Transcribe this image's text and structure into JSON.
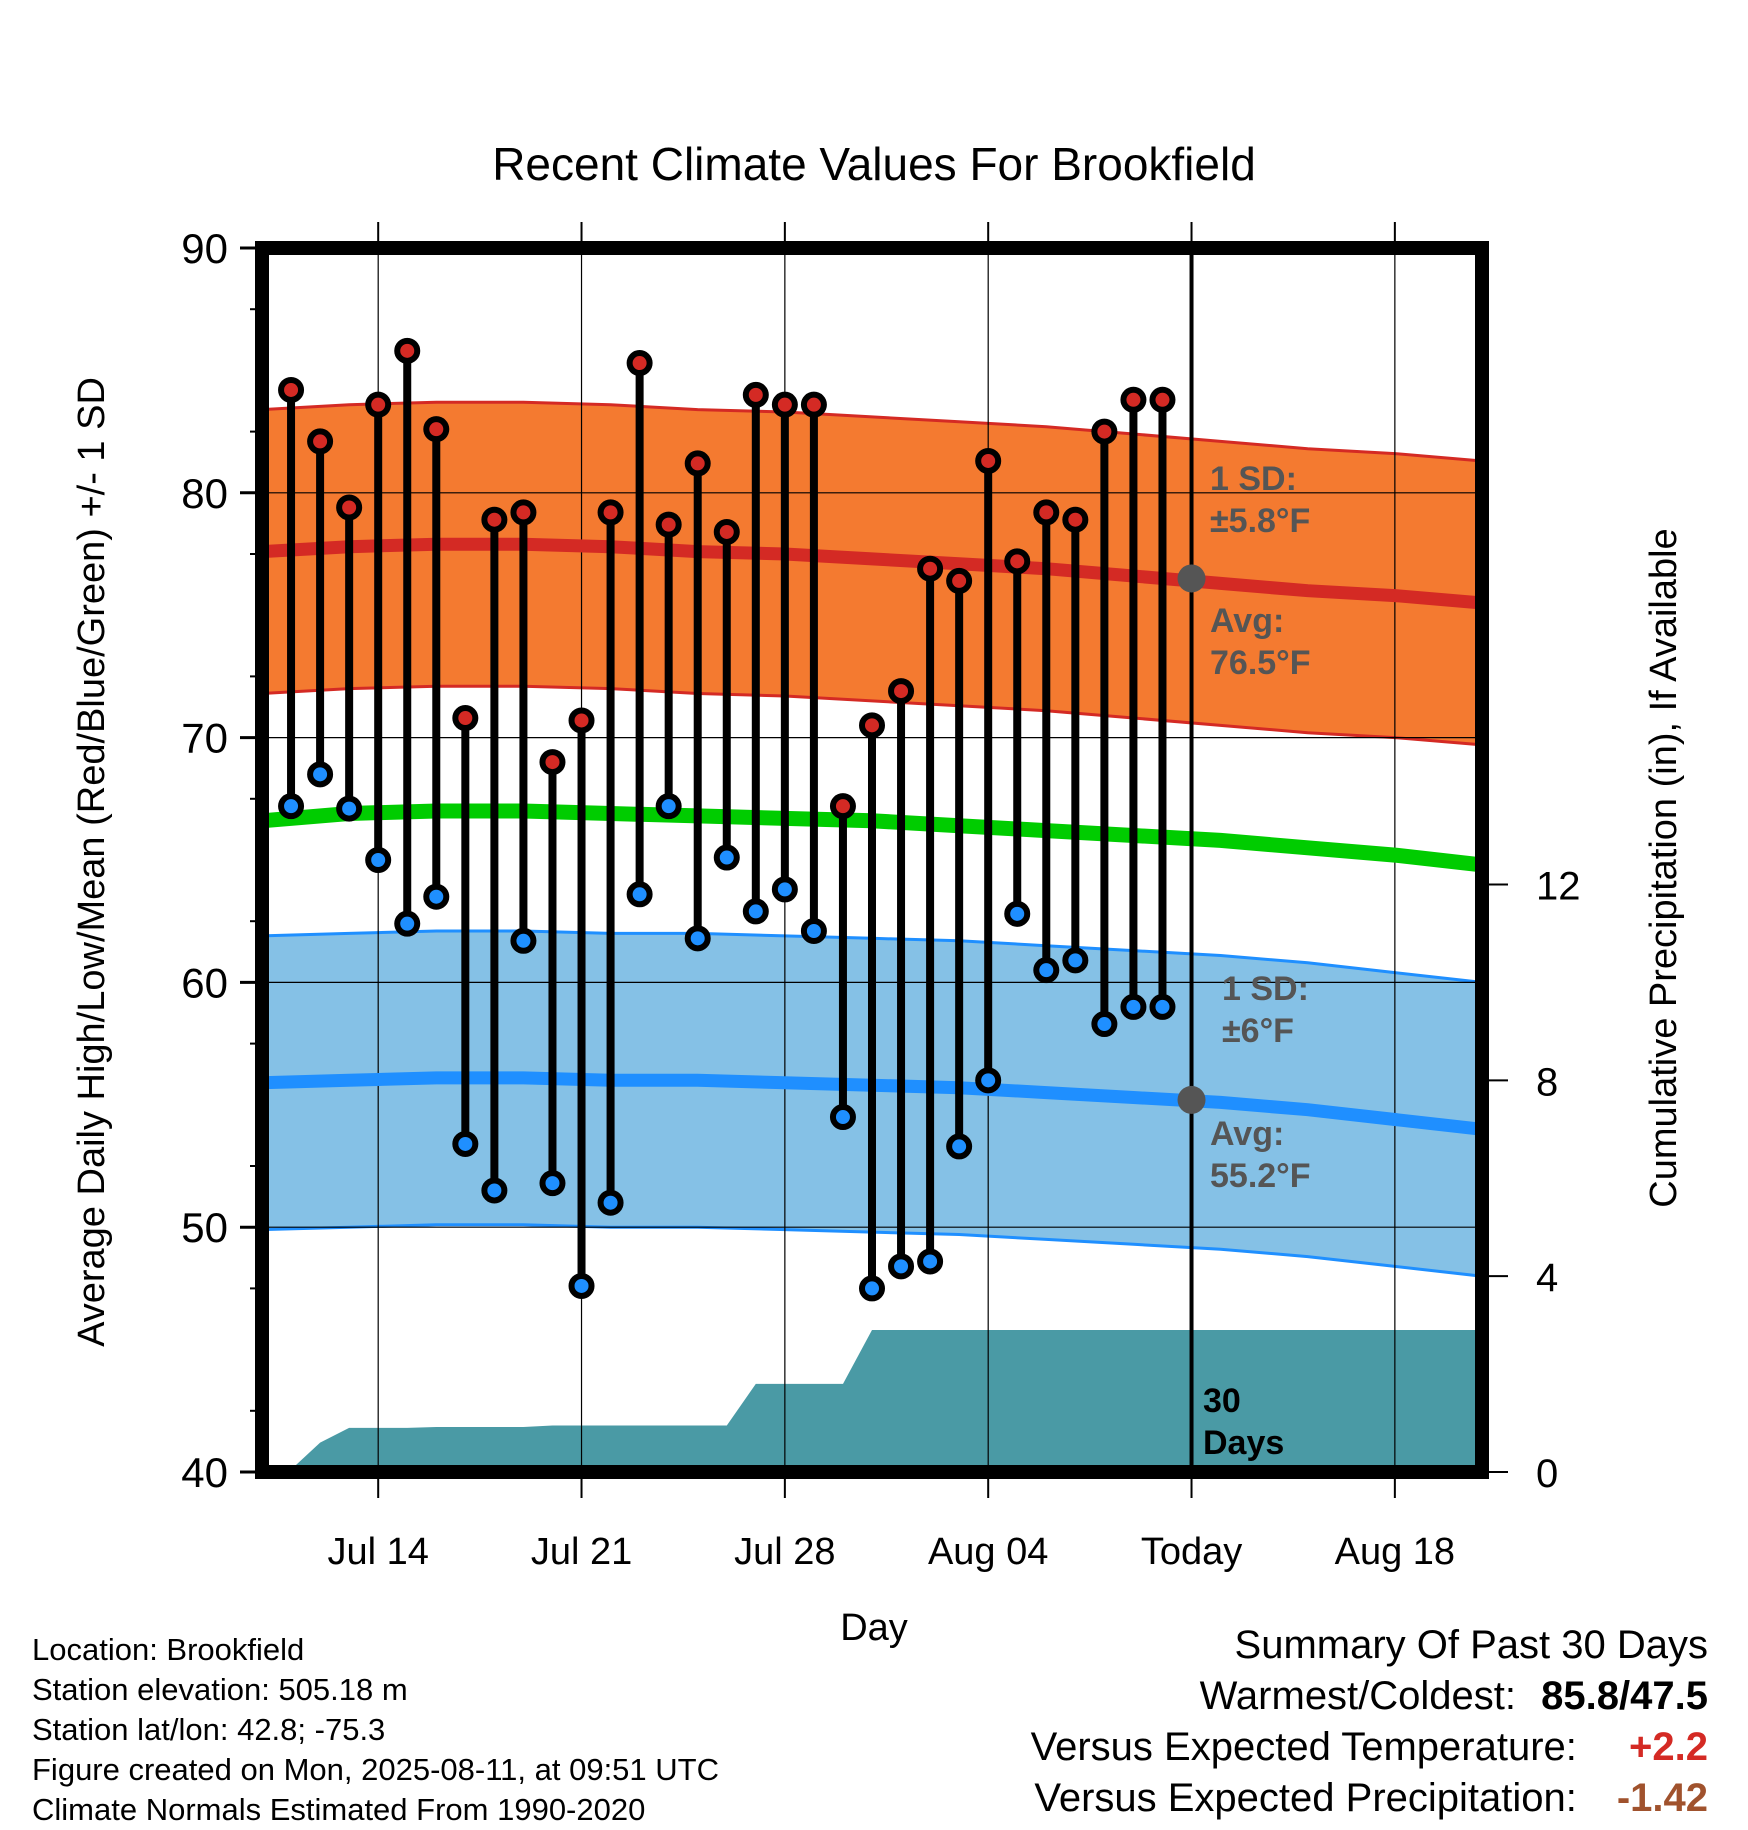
{
  "chart_data": {
    "type": "line",
    "title": "Recent Climate Values For Brookfield",
    "xlabel": "Day",
    "ylabel": "Average Daily High/Low/Mean (Red/Blue/Green) +/- 1 SD",
    "y2label": "Cumulative Precipitation (in), If Available",
    "x_range": [
      "Jul 10",
      "Aug 21"
    ],
    "ylim": [
      40,
      90
    ],
    "y2lim": [
      0,
      25
    ],
    "x_ticks": [
      {
        "date": "Jul 14",
        "label": "Jul 14"
      },
      {
        "date": "Jul 21",
        "label": "Jul 21"
      },
      {
        "date": "Jul 28",
        "label": "Jul 28"
      },
      {
        "date": "Aug 04",
        "label": "Aug 04"
      },
      {
        "date": "Aug 11",
        "label": "Today"
      },
      {
        "date": "Aug 18",
        "label": "Aug 18"
      }
    ],
    "y_ticks": [
      "40",
      "50",
      "60",
      "70",
      "80",
      "90"
    ],
    "y2_ticks": [
      {
        "value": 0,
        "label": "0"
      },
      {
        "value": 4,
        "label": "4"
      },
      {
        "value": 8,
        "label": "8"
      },
      {
        "value": 12,
        "label": "12"
      }
    ],
    "grid": true,
    "today": "Aug 11",
    "colors": {
      "high_band": "#f47a30",
      "high_line": "#d42a24",
      "mean_line": "#00cc00",
      "low_band": "#85c1e6",
      "low_line": "#1f8fff",
      "low_band_edge": "#1f8fff",
      "precip": "#4a9aa5",
      "high_dot": "#d42a24",
      "low_dot": "#1f8fff",
      "marker": "#555555",
      "annotation": "#555555"
    },
    "normals": {
      "dates": [
        "Jul 10",
        "Jul 13",
        "Jul 16",
        "Jul 19",
        "Jul 22",
        "Jul 25",
        "Jul 28",
        "Jul 31",
        "Aug 03",
        "Aug 06",
        "Aug 09",
        "Aug 12",
        "Aug 15",
        "Aug 18",
        "Aug 21"
      ],
      "high_avg": [
        77.6,
        77.8,
        77.9,
        77.9,
        77.8,
        77.6,
        77.5,
        77.3,
        77.1,
        76.9,
        76.6,
        76.3,
        76.0,
        75.8,
        75.5
      ],
      "high_sd": 5.8,
      "mean_avg": [
        66.6,
        66.9,
        67.0,
        67.0,
        66.9,
        66.8,
        66.7,
        66.6,
        66.4,
        66.2,
        66.0,
        65.8,
        65.5,
        65.2,
        64.8
      ],
      "low_avg": [
        55.9,
        56.0,
        56.1,
        56.1,
        56.0,
        56.0,
        55.9,
        55.8,
        55.7,
        55.5,
        55.3,
        55.1,
        54.8,
        54.4,
        54.0
      ],
      "low_sd": 6.0
    },
    "observed": {
      "dates": [
        "Jul 11",
        "Jul 12",
        "Jul 13",
        "Jul 14",
        "Jul 15",
        "Jul 16",
        "Jul 17",
        "Jul 18",
        "Jul 19",
        "Jul 20",
        "Jul 21",
        "Jul 22",
        "Jul 23",
        "Jul 24",
        "Jul 25",
        "Jul 26",
        "Jul 27",
        "Jul 28",
        "Jul 29",
        "Jul 30",
        "Jul 31",
        "Aug 01",
        "Aug 02",
        "Aug 03",
        "Aug 04",
        "Aug 05",
        "Aug 06",
        "Aug 07",
        "Aug 08",
        "Aug 09",
        "Aug 10"
      ],
      "high": [
        84.2,
        82.1,
        79.4,
        83.6,
        85.8,
        82.6,
        70.8,
        78.9,
        79.2,
        69.0,
        70.7,
        79.2,
        85.3,
        78.7,
        81.2,
        78.4,
        84.0,
        83.6,
        83.6,
        67.2,
        70.5,
        71.9,
        76.9,
        76.4,
        81.3,
        77.2,
        79.2,
        78.9,
        82.5,
        83.8,
        83.8
      ],
      "low": [
        67.2,
        68.5,
        67.1,
        65.0,
        62.4,
        63.5,
        53.4,
        51.5,
        61.7,
        51.8,
        47.6,
        51.0,
        63.6,
        67.2,
        61.8,
        65.1,
        62.9,
        63.8,
        62.1,
        54.5,
        47.5,
        48.4,
        48.6,
        53.3,
        56.0,
        62.8,
        60.5,
        60.9,
        58.3,
        59.0,
        59.0
      ]
    },
    "precip_cumulative": {
      "dates": [
        "Jul 10",
        "Jul 11",
        "Jul 12",
        "Jul 13",
        "Jul 14",
        "Jul 15",
        "Jul 16",
        "Jul 17",
        "Jul 18",
        "Jul 19",
        "Jul 20",
        "Jul 21",
        "Jul 22",
        "Jul 23",
        "Jul 24",
        "Jul 25",
        "Jul 26",
        "Jul 27",
        "Jul 28",
        "Jul 29",
        "Jul 30",
        "Jul 31",
        "Aug 21"
      ],
      "values": [
        0,
        0.05,
        0.6,
        0.9,
        0.9,
        0.9,
        0.92,
        0.92,
        0.92,
        0.92,
        0.95,
        0.95,
        0.95,
        0.95,
        0.95,
        0.95,
        0.95,
        1.8,
        1.8,
        1.8,
        1.8,
        2.9,
        2.9
      ]
    },
    "annotations": {
      "high_sd": [
        "1 SD:",
        "±5.8°F"
      ],
      "high_avg": [
        "Avg:",
        "76.5°F"
      ],
      "low_sd": [
        "1 SD:",
        "±6°F"
      ],
      "low_avg": [
        "Avg:",
        "55.2°F"
      ],
      "days": [
        "30",
        "Days"
      ],
      "today_high_avg": 76.5,
      "today_low_avg": 55.2
    }
  },
  "info": {
    "location": "Location: Brookfield",
    "elevation": "Station elevation: 505.18 m",
    "latlon": "Station lat/lon: 42.8; -75.3",
    "created": "Figure created on Mon, 2025-08-11, at 09:51 UTC",
    "normals": "Climate Normals Estimated From 1990-2020"
  },
  "summary": {
    "title": "Summary Of Past 30 Days",
    "warm_cold_label": "Warmest/Coldest:",
    "warmest": "85.8",
    "coldest": "47.5",
    "temp_label": "Versus Expected Temperature:",
    "temp_value": "+2.2",
    "temp_color": "#d42a24",
    "precip_label": "Versus Expected Precipitation:",
    "precip_value": "-1.42",
    "precip_color": "#a0522d"
  }
}
